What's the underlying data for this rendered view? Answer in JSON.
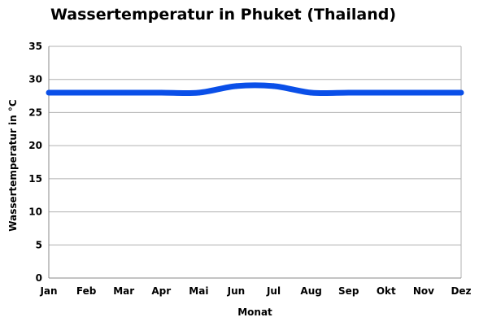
{
  "chart_data": {
    "type": "line",
    "title": "Wassertemperatur in Phuket (Thailand)",
    "xlabel": "Monat",
    "ylabel": "Wassertemperatur in °C",
    "categories": [
      "Jan",
      "Feb",
      "Mar",
      "Apr",
      "Mai",
      "Jun",
      "Jul",
      "Aug",
      "Sep",
      "Okt",
      "Nov",
      "Dez"
    ],
    "series": [
      {
        "values": [
          28,
          28,
          28,
          28,
          28,
          29,
          29,
          28,
          28,
          28,
          28,
          28
        ]
      }
    ],
    "ylim": [
      0,
      35
    ],
    "yticks": [
      0,
      5,
      10,
      15,
      20,
      25,
      30,
      35
    ],
    "grid": true,
    "legend": "none",
    "colors": {
      "line": "#0a4fe8",
      "grid": "#b0b0b0",
      "axis": "#888888"
    }
  }
}
